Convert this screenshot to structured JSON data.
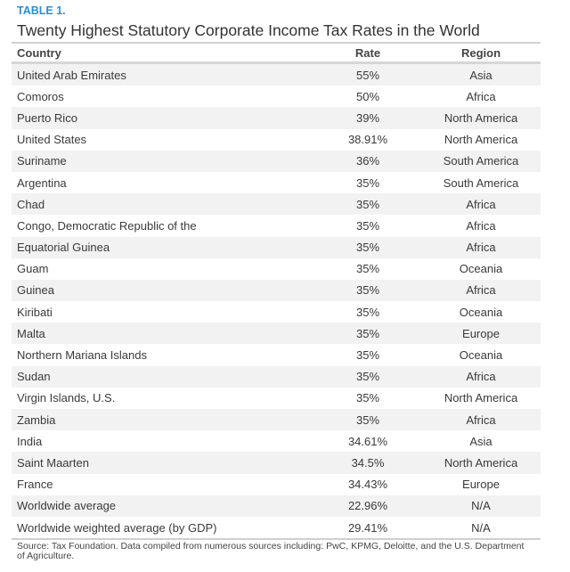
{
  "label": "TABLE 1.",
  "title": "Twenty Highest Statutory Corporate Income Tax Rates in the World",
  "columns": [
    "Country",
    "Rate",
    "Region"
  ],
  "rows": [
    [
      "United Arab Emirates",
      "55%",
      "Asia"
    ],
    [
      "Comoros",
      "50%",
      "Africa"
    ],
    [
      "Puerto Rico",
      "39%",
      "North America"
    ],
    [
      "United States",
      "38.91%",
      "North America"
    ],
    [
      "Suriname",
      "36%",
      "South America"
    ],
    [
      "Argentina",
      "35%",
      "South America"
    ],
    [
      "Chad",
      "35%",
      "Africa"
    ],
    [
      "Congo, Democratic Republic of the",
      "35%",
      "Africa"
    ],
    [
      "Equatorial Guinea",
      "35%",
      "Africa"
    ],
    [
      "Guam",
      "35%",
      "Oceania"
    ],
    [
      "Guinea",
      "35%",
      "Africa"
    ],
    [
      "Kiribati",
      "35%",
      "Oceania"
    ],
    [
      "Malta",
      "35%",
      "Europe"
    ],
    [
      "Northern Mariana Islands",
      "35%",
      "Oceania"
    ],
    [
      "Sudan",
      "35%",
      "Africa"
    ],
    [
      "Virgin Islands, U.S.",
      "35%",
      "North America"
    ],
    [
      "Zambia",
      "35%",
      "Africa"
    ],
    [
      "India",
      "34.61%",
      "Asia"
    ],
    [
      "Saint Maarten",
      "34.5%",
      "North America"
    ],
    [
      "France",
      "34.43%",
      "Europe"
    ],
    [
      "Worldwide average",
      "22.96%",
      "N/A"
    ],
    [
      "Worldwide weighted average (by GDP)",
      "29.41%",
      "N/A"
    ]
  ],
  "source": "Source: Tax Foundation. Data compiled from numerous sources including: PwC, KPMG, Deloitte, and the U.S. Department of Agriculture.",
  "colors": {
    "label": "#2b8fd0",
    "stripe": "#f2f2f2"
  }
}
